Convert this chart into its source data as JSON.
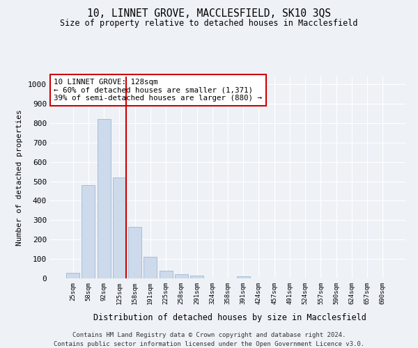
{
  "title1": "10, LINNET GROVE, MACCLESFIELD, SK10 3QS",
  "title2": "Size of property relative to detached houses in Macclesfield",
  "xlabel": "Distribution of detached houses by size in Macclesfield",
  "ylabel": "Number of detached properties",
  "categories": [
    "25sqm",
    "58sqm",
    "92sqm",
    "125sqm",
    "158sqm",
    "191sqm",
    "225sqm",
    "258sqm",
    "291sqm",
    "324sqm",
    "358sqm",
    "391sqm",
    "424sqm",
    "457sqm",
    "491sqm",
    "524sqm",
    "557sqm",
    "590sqm",
    "624sqm",
    "657sqm",
    "690sqm"
  ],
  "values": [
    30,
    480,
    820,
    520,
    265,
    110,
    40,
    20,
    15,
    0,
    0,
    10,
    0,
    0,
    0,
    0,
    0,
    0,
    0,
    0,
    0
  ],
  "bar_color": "#cddaeb",
  "bar_edge_color": "#a8bdd4",
  "property_line_color": "#cc0000",
  "annotation_text": "10 LINNET GROVE: 128sqm\n← 60% of detached houses are smaller (1,371)\n39% of semi-detached houses are larger (880) →",
  "annotation_box_color": "#ffffff",
  "annotation_box_edgecolor": "#cc0000",
  "ylim": [
    0,
    1040
  ],
  "yticks": [
    0,
    100,
    200,
    300,
    400,
    500,
    600,
    700,
    800,
    900,
    1000
  ],
  "footer1": "Contains HM Land Registry data © Crown copyright and database right 2024.",
  "footer2": "Contains public sector information licensed under the Open Government Licence v3.0.",
  "bg_color": "#eef2f7",
  "plot_bg_color": "#eef2f7",
  "grid_color": "#ffffff"
}
